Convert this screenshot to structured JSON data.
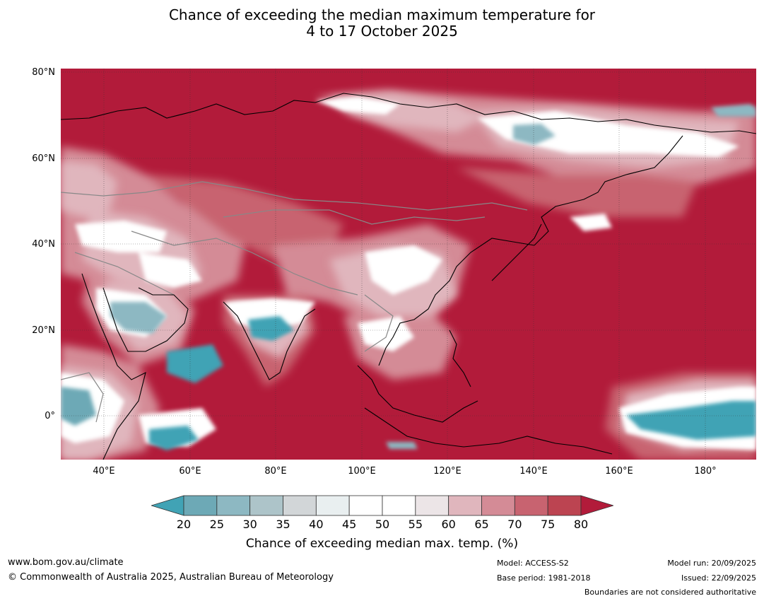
{
  "title_line1": "Chance of exceeding the median maximum temperature for",
  "title_line2": "4 to 17 October 2025",
  "lat_labels": [
    "80°N",
    "60°N",
    "40°N",
    "20°N",
    "0°"
  ],
  "lon_labels": [
    "40°E",
    "60°E",
    "80°E",
    "100°E",
    "120°E",
    "140°E",
    "160°E",
    "180°"
  ],
  "colorbar": {
    "ticks": [
      "20",
      "25",
      "30",
      "35",
      "40",
      "45",
      "50",
      "55",
      "60",
      "65",
      "70",
      "75",
      "80"
    ],
    "colors": [
      "#41a3b5",
      "#6da9b6",
      "#8db8c2",
      "#adc4c9",
      "#d2d6d8",
      "#e9eff0",
      "#ffffff",
      "#ffffff",
      "#ece5e7",
      "#e0b6bd",
      "#d48b96",
      "#c86370",
      "#bc4451",
      "#b21b3a"
    ],
    "label": "Chance of exceeding median max. temp. (%)"
  },
  "palette": {
    "hot": "#b21b3a",
    "warm1": "#bc4451",
    "warm2": "#c86370",
    "warm3": "#d48b96",
    "warm4": "#e0b6bd",
    "neutral": "#ffffff",
    "cool1": "#d2d6d8",
    "cool2": "#8db8c2",
    "cool3": "#41a3b5"
  },
  "footer": {
    "website": "www.bom.gov.au/climate",
    "copyright": "© Commonwealth of Australia 2025, Australian Bureau of Meteorology",
    "model": "Model: ACCESS-S2",
    "base_period": "Base period: 1981-2018",
    "model_run": "Model run: 20/09/2025",
    "issued": "Issued: 22/09/2025",
    "disclaimer": "Boundaries are not considered authoritative"
  }
}
